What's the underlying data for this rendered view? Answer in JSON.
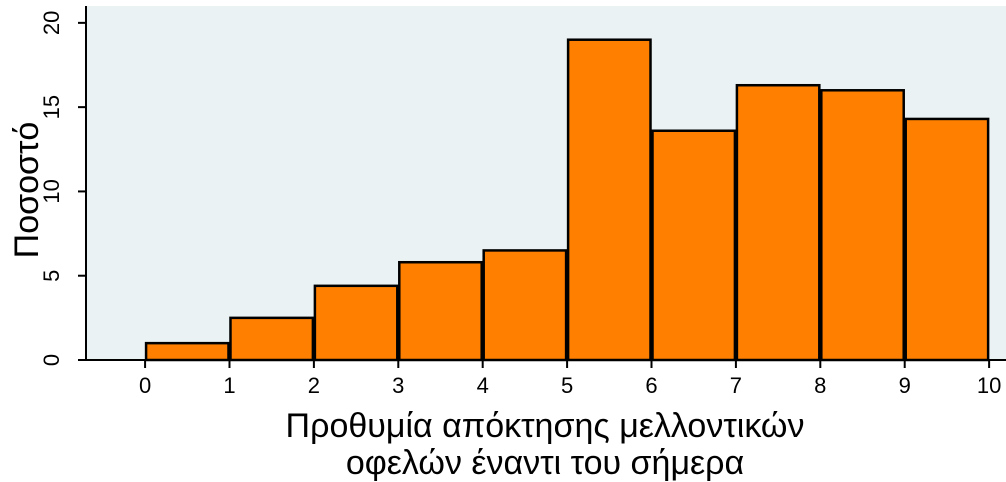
{
  "chart_data": {
    "type": "bar",
    "histogram": true,
    "bins": [
      {
        "x0": 0,
        "x1": 1,
        "value": 1.0
      },
      {
        "x0": 1,
        "x1": 2,
        "value": 2.5
      },
      {
        "x0": 2,
        "x1": 3,
        "value": 4.4
      },
      {
        "x0": 3,
        "x1": 4,
        "value": 5.8
      },
      {
        "x0": 4,
        "x1": 5,
        "value": 6.5
      },
      {
        "x0": 5,
        "x1": 6,
        "value": 19.0
      },
      {
        "x0": 6,
        "x1": 7,
        "value": 13.6
      },
      {
        "x0": 7,
        "x1": 8,
        "value": 16.3
      },
      {
        "x0": 8,
        "x1": 9,
        "value": 16.0
      },
      {
        "x0": 9,
        "x1": 10,
        "value": 14.3
      }
    ],
    "xticks": [
      "0",
      "1",
      "2",
      "3",
      "4",
      "5",
      "6",
      "7",
      "8",
      "9",
      "10"
    ],
    "yticks": [
      "0",
      "5",
      "10",
      "15",
      "20"
    ],
    "xlim": [
      -0.7,
      10.2
    ],
    "ylim": [
      0,
      21
    ],
    "ylabel": "Ποσοστό",
    "xlabel_line1": "Προθυμία απόκτησης μελλοντικών",
    "xlabel_line2": "οφελών έναντι του σήμερα",
    "colors": {
      "bar_fill": "#ff8000",
      "bar_stroke": "#000000",
      "plot_background": "#eaf2f3",
      "axis": "#000000"
    },
    "grid": false
  }
}
